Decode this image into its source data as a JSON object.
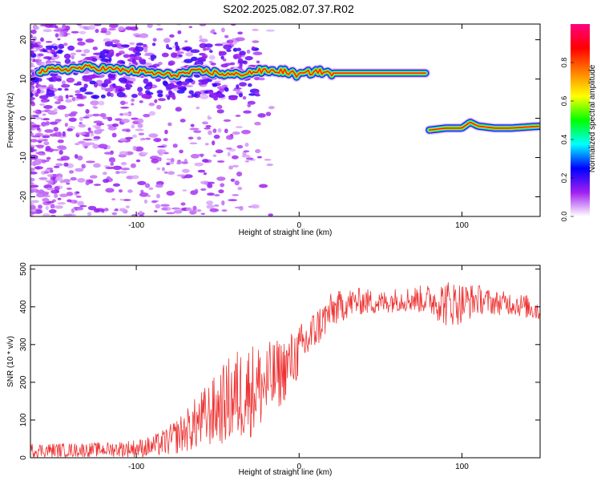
{
  "title": "S202.2025.082.07.37.R02",
  "chart_data": [
    {
      "type": "heatmap",
      "xlabel": "Height of straight line (km)",
      "ylabel": "Frequency (Hz)",
      "xlim": [
        -165,
        148
      ],
      "ylim": [
        -25,
        24
      ],
      "xticks": [
        -100,
        0,
        100
      ],
      "yticks": [
        -20,
        -10,
        0,
        10,
        20
      ],
      "colorbar": {
        "label": "Normalized spectral amplitude",
        "range": [
          0,
          1
        ],
        "ticks": [
          "0.0",
          "0.2",
          "0.4",
          "0.6",
          "0.8"
        ],
        "colors": [
          "#ffffff",
          "#a020f0",
          "#0000ff",
          "#00ffff",
          "#00ff00",
          "#ffff00",
          "#ff8000",
          "#ff0000",
          "#ff0080"
        ]
      },
      "tracks": [
        {
          "x": [
            -160,
            -130,
            -100,
            -80,
            -60,
            -40,
            -25,
            -10,
            0,
            10,
            20,
            40,
            60,
            78
          ],
          "y": [
            12,
            13,
            12,
            11,
            12,
            11,
            12,
            12,
            11,
            12,
            11.5,
            11.5,
            11.5,
            11.5
          ],
          "peak_amplitude": 1.0
        },
        {
          "x": [
            80,
            90,
            100,
            105,
            110,
            120,
            130,
            148
          ],
          "y": [
            -3,
            -2.5,
            -2.5,
            -1,
            -2,
            -2.5,
            -2.5,
            -2
          ],
          "peak_amplitude": 1.0
        }
      ]
    },
    {
      "type": "line",
      "xlabel": "Height of straight line (km)",
      "ylabel": "SNR (10 * v/v)",
      "xlim": [
        -165,
        148
      ],
      "ylim": [
        0,
        510
      ],
      "xticks": [
        -100,
        0,
        100
      ],
      "yticks": [
        0,
        100,
        200,
        300,
        400,
        500
      ],
      "color": "#ee3333",
      "series": [
        {
          "x": [
            -165,
            -140,
            -120,
            -100,
            -90,
            -80,
            -70,
            -60,
            -50,
            -40,
            -30,
            -20,
            -10,
            0,
            10,
            20,
            30,
            40,
            50,
            60,
            70,
            80,
            90,
            100,
            110,
            120,
            130,
            140,
            148
          ],
          "y": [
            20,
            20,
            22,
            25,
            30,
            45,
            70,
            100,
            130,
            160,
            180,
            195,
            230,
            280,
            340,
            390,
            410,
            415,
            410,
            420,
            420,
            420,
            410,
            410,
            420,
            410,
            410,
            400,
            390
          ],
          "noise": [
            12,
            12,
            12,
            15,
            18,
            25,
            35,
            50,
            60,
            80,
            80,
            70,
            55,
            45,
            35,
            30,
            25,
            22,
            20,
            20,
            22,
            25,
            40,
            35,
            25,
            20,
            20,
            20,
            20
          ]
        }
      ]
    }
  ]
}
